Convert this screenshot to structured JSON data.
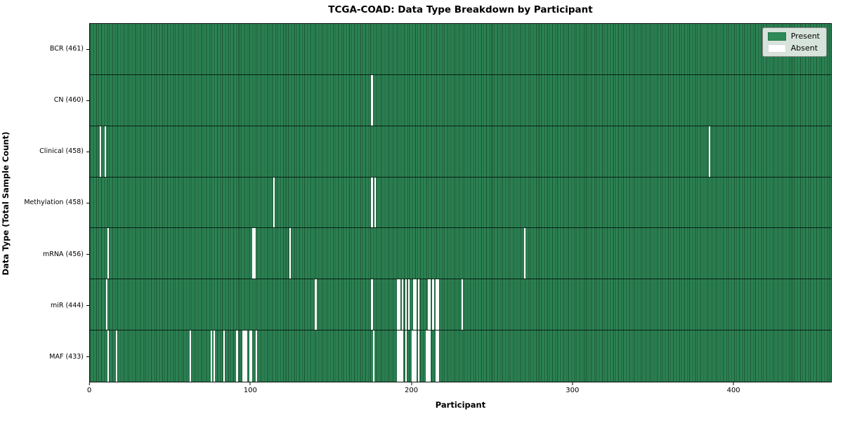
{
  "chart_data": {
    "type": "heatmap",
    "title": "TCGA-COAD: Data Type Breakdown by Participant",
    "xlabel": "Participant",
    "ylabel": "Data Type (Total Sample Count)",
    "x_ticks": [
      0,
      100,
      200,
      300,
      400
    ],
    "xlim": [
      0,
      461
    ],
    "participants_total": 461,
    "grid": false,
    "colors": {
      "present": "#2e8b57",
      "absent": "#ffffff",
      "cell_edge": "#1b4c30"
    },
    "legend": {
      "position": "upper right",
      "entries": [
        {
          "label": "Present",
          "color": "#2e8b57"
        },
        {
          "label": "Absent",
          "color": "#ffffff"
        }
      ]
    },
    "rows": [
      {
        "name": "BCR",
        "label": "BCR (461)",
        "count": 461,
        "absent_participants": []
      },
      {
        "name": "CN",
        "label": "CN (460)",
        "count": 460,
        "absent_participants": [
          175
        ]
      },
      {
        "name": "Clinical",
        "label": "Clinical (458)",
        "count": 458,
        "absent_participants": [
          6,
          9,
          385
        ]
      },
      {
        "name": "Methylation",
        "label": "Methylation (458)",
        "count": 458,
        "absent_participants": [
          114,
          175,
          177
        ]
      },
      {
        "name": "mRNA",
        "label": "mRNA (456)",
        "count": 456,
        "absent_participants": [
          11,
          101,
          102,
          124,
          270
        ]
      },
      {
        "name": "miR",
        "label": "miR (444)",
        "count": 444,
        "absent_participants": [
          10,
          140,
          175,
          191,
          192,
          194,
          196,
          198,
          201,
          202,
          204,
          210,
          211,
          213,
          215,
          216,
          231
        ]
      },
      {
        "name": "MAF",
        "label": "MAF (433)",
        "count": 433,
        "absent_participants": [
          11,
          16,
          62,
          75,
          77,
          83,
          91,
          95,
          96,
          97,
          99,
          100,
          103,
          176,
          191,
          192,
          193,
          194,
          196,
          200,
          201,
          202,
          204,
          209,
          210,
          211,
          215,
          216
        ]
      }
    ]
  }
}
